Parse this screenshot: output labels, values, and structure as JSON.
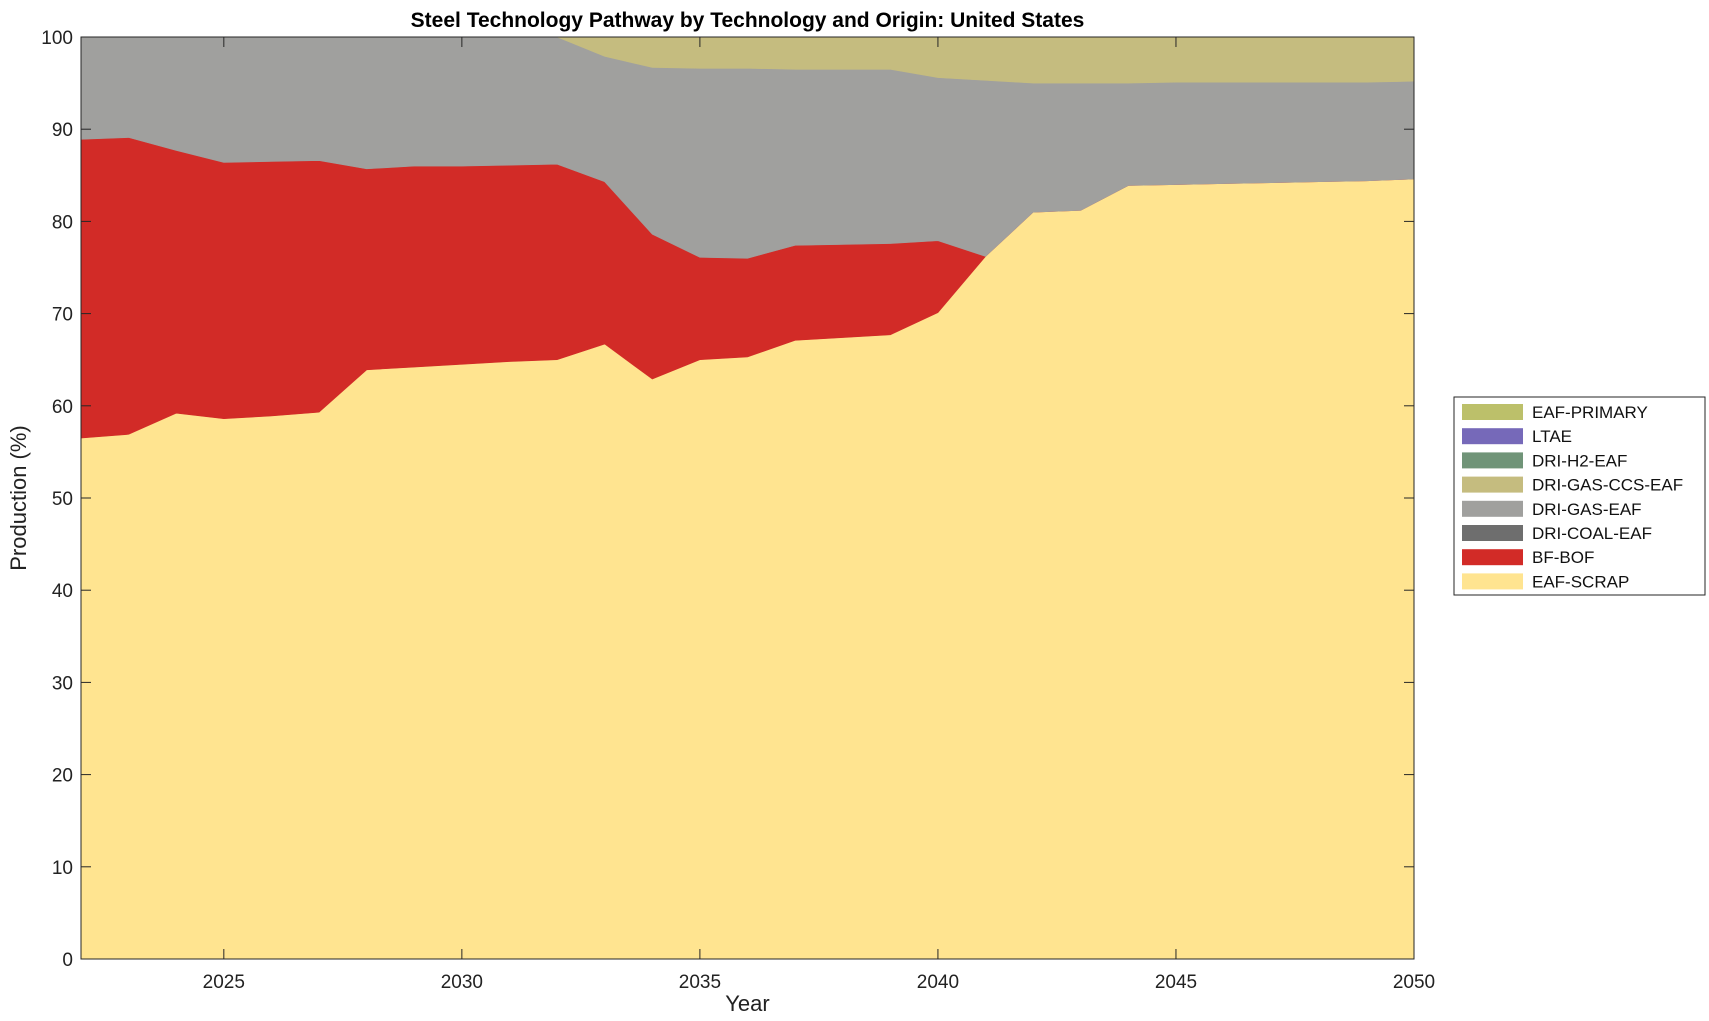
{
  "chart_data": {
    "type": "area",
    "title": "Steel Technology Pathway by Technology and Origin: United States",
    "xlabel": "Year",
    "ylabel": "Production (%)",
    "xlim": [
      2022,
      2050
    ],
    "ylim": [
      0,
      100
    ],
    "x_ticks": [
      "2025",
      "2030",
      "2035",
      "2040",
      "2045",
      "2050"
    ],
    "y_ticks": [
      "0",
      "10",
      "20",
      "30",
      "40",
      "50",
      "60",
      "70",
      "80",
      "90",
      "100"
    ],
    "grid": false,
    "stacked": true,
    "legend_position": "right",
    "x": [
      2022,
      2023,
      2024,
      2025,
      2026,
      2027,
      2028,
      2029,
      2030,
      2031,
      2032,
      2033,
      2034,
      2035,
      2036,
      2037,
      2038,
      2039,
      2040,
      2041,
      2042,
      2043,
      2044,
      2045,
      2046,
      2047,
      2048,
      2049,
      2050
    ],
    "series": [
      {
        "name": "EAF-SCRAP",
        "color": "#FFE490",
        "values": [
          56.5,
          56.9,
          59.2,
          58.6,
          58.9,
          59.3,
          63.9,
          64.2,
          64.5,
          64.8,
          65.0,
          66.7,
          62.9,
          65.0,
          65.3,
          67.1,
          67.4,
          67.7,
          70.1,
          76.2,
          81.0,
          81.2,
          83.9,
          84.0,
          84.1,
          84.2,
          84.3,
          84.4,
          84.6
        ]
      },
      {
        "name": "BF-BOF",
        "color": "#D22B27",
        "values": [
          32.4,
          32.2,
          28.5,
          27.8,
          27.6,
          27.3,
          21.8,
          21.8,
          21.5,
          21.3,
          21.2,
          17.6,
          15.7,
          11.1,
          10.7,
          10.3,
          10.1,
          9.9,
          7.8,
          0.0,
          0.0,
          0.0,
          0.0,
          0.0,
          0.0,
          0.0,
          0.0,
          0.0,
          0.0
        ]
      },
      {
        "name": "DRI-COAL-EAF",
        "color": "#6E6E6E",
        "values": [
          0,
          0,
          0,
          0,
          0,
          0,
          0,
          0,
          0,
          0,
          0,
          0,
          0,
          0,
          0,
          0,
          0,
          0,
          0,
          0,
          0,
          0,
          0,
          0,
          0,
          0,
          0,
          0,
          0
        ]
      },
      {
        "name": "DRI-GAS-EAF",
        "color": "#A0A09E",
        "values": [
          11.1,
          10.9,
          12.3,
          13.6,
          13.5,
          13.4,
          14.3,
          14.0,
          14.0,
          13.9,
          13.8,
          13.6,
          18.1,
          20.5,
          20.6,
          19.1,
          19.0,
          18.9,
          17.7,
          19.1,
          14.0,
          13.8,
          11.1,
          11.1,
          11.0,
          10.9,
          10.8,
          10.7,
          10.6
        ]
      },
      {
        "name": "DRI-GAS-CCS-EAF",
        "color": "#C5BC7F",
        "values": [
          0,
          0,
          0,
          0,
          0,
          0,
          0,
          0,
          0,
          0,
          0,
          2.1,
          3.3,
          3.4,
          3.4,
          3.5,
          3.5,
          3.5,
          4.4,
          4.7,
          5.0,
          5.0,
          5.0,
          4.9,
          4.9,
          4.9,
          4.9,
          4.9,
          4.8
        ]
      },
      {
        "name": "DRI-H2-EAF",
        "color": "#709478",
        "values": [
          0,
          0,
          0,
          0,
          0,
          0,
          0,
          0,
          0,
          0,
          0,
          0,
          0,
          0,
          0,
          0,
          0,
          0,
          0,
          0,
          0,
          0,
          0,
          0,
          0,
          0,
          0,
          0,
          0
        ]
      },
      {
        "name": "LTAE",
        "color": "#7669B9",
        "values": [
          0,
          0,
          0,
          0,
          0,
          0,
          0,
          0,
          0,
          0,
          0,
          0,
          0,
          0,
          0,
          0,
          0,
          0,
          0,
          0,
          0,
          0,
          0,
          0,
          0,
          0,
          0,
          0,
          0
        ]
      },
      {
        "name": "EAF-PRIMARY",
        "color": "#BCC06A",
        "values": [
          0,
          0,
          0,
          0,
          0,
          0,
          0,
          0,
          0,
          0,
          0,
          0,
          0,
          0,
          0,
          0,
          0,
          0,
          0,
          0,
          0,
          0,
          0,
          0,
          0,
          0,
          0,
          0,
          0
        ]
      }
    ],
    "legend_order": [
      "EAF-PRIMARY",
      "LTAE",
      "DRI-H2-EAF",
      "DRI-GAS-CCS-EAF",
      "DRI-GAS-EAF",
      "DRI-COAL-EAF",
      "BF-BOF",
      "EAF-SCRAP"
    ]
  }
}
